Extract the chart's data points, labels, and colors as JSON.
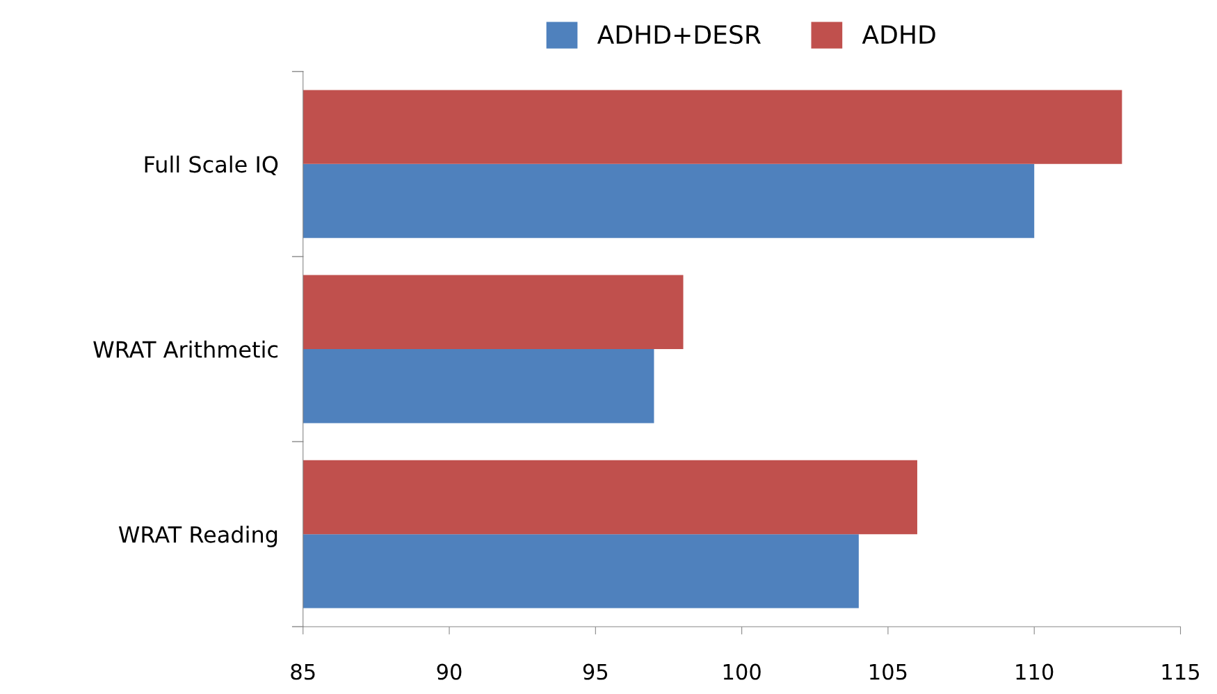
{
  "chart_data": {
    "type": "bar",
    "orientation": "horizontal",
    "categories": [
      "Full Scale IQ",
      "WRAT Arithmetic",
      "WRAT Reading"
    ],
    "series": [
      {
        "name": "ADHD+DESR",
        "color": "#4f81bd",
        "values": [
          110,
          97,
          104
        ]
      },
      {
        "name": "ADHD",
        "color": "#c0504d",
        "values": [
          113,
          98,
          106
        ]
      }
    ],
    "xlim": [
      85,
      115
    ],
    "xticks": [
      85,
      90,
      95,
      100,
      105,
      110,
      115
    ],
    "grid": false,
    "legend": "top"
  }
}
